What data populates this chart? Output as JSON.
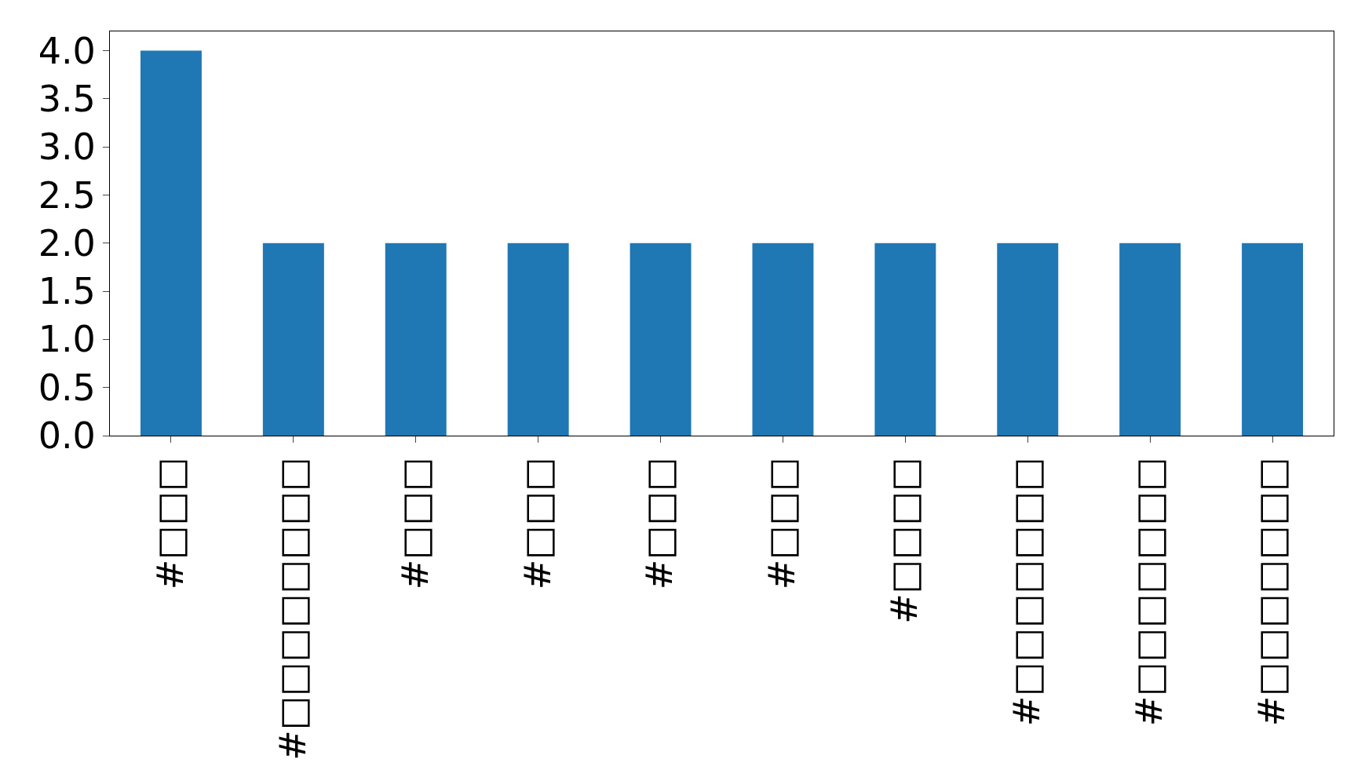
{
  "chart_data": {
    "type": "bar",
    "categories": [
      "#□□□",
      "#□□□□□□□□",
      "#□□□",
      "#□□□",
      "#□□□",
      "#□□□",
      "#□□□□",
      "#□□□□□□□",
      "#□□□□□□□",
      "#□□□□□□□"
    ],
    "values": [
      4,
      2,
      2,
      2,
      2,
      2,
      2,
      2,
      2,
      2
    ],
    "color": "#1f77b4",
    "ylim": [
      0,
      4.2
    ],
    "yticks": [
      {
        "value": 0,
        "label": "0.0"
      },
      {
        "value": 0.5,
        "label": "0.5"
      },
      {
        "value": 1,
        "label": "1.0"
      },
      {
        "value": 1.5,
        "label": "1.5"
      },
      {
        "value": 2,
        "label": "2.0"
      },
      {
        "value": 2.5,
        "label": "2.5"
      },
      {
        "value": 3,
        "label": "3.0"
      },
      {
        "value": 3.5,
        "label": "3.5"
      },
      {
        "value": 4,
        "label": "4.0"
      }
    ],
    "legend": false
  }
}
